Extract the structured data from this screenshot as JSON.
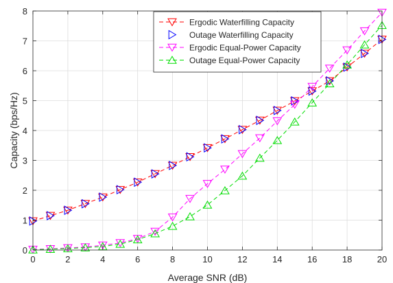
{
  "chart_data": {
    "type": "line",
    "title": "",
    "xlabel": "Average SNR (dB)",
    "ylabel": "Capacity (bps/Hz)",
    "xlim": [
      0,
      20
    ],
    "ylim": [
      0,
      8
    ],
    "xticks": [
      0,
      2,
      4,
      6,
      8,
      10,
      12,
      14,
      16,
      18,
      20
    ],
    "yticks": [
      0,
      1,
      2,
      3,
      4,
      5,
      6,
      7,
      8
    ],
    "grid": true,
    "legend_position": "top-right",
    "x": [
      0,
      1,
      2,
      3,
      4,
      5,
      6,
      7,
      8,
      9,
      10,
      11,
      12,
      13,
      14,
      15,
      16,
      17,
      18,
      19,
      20
    ],
    "series": [
      {
        "name": "Ergodic Waterfilling Capacity",
        "color": "#ff0000",
        "marker": "triangle-down",
        "linestyle": "dashed",
        "values": [
          0.97,
          1.15,
          1.33,
          1.55,
          1.77,
          2.02,
          2.27,
          2.55,
          2.83,
          3.12,
          3.42,
          3.72,
          4.03,
          4.34,
          4.67,
          4.99,
          5.32,
          5.66,
          6.12,
          6.58,
          7.05
        ]
      },
      {
        "name": "Outage Waterfilling Capacity",
        "color": "#0000ff",
        "marker": "triangle-right",
        "linestyle": "none",
        "values": [
          0.97,
          1.15,
          1.33,
          1.55,
          1.77,
          2.02,
          2.27,
          2.55,
          2.83,
          3.12,
          3.42,
          3.72,
          4.03,
          4.34,
          4.67,
          4.99,
          5.32,
          5.66,
          6.12,
          6.58,
          7.05
        ]
      },
      {
        "name": "Ergodic Equal-Power Capacity",
        "color": "#ff00ff",
        "marker": "triangle-down",
        "linestyle": "dashed",
        "values": [
          0.02,
          0.04,
          0.07,
          0.1,
          0.16,
          0.24,
          0.38,
          0.62,
          1.1,
          1.72,
          2.22,
          2.7,
          3.22,
          3.75,
          4.32,
          4.87,
          5.47,
          6.08,
          6.69,
          7.33,
          7.95
        ]
      },
      {
        "name": "Outage Equal-Power Capacity",
        "color": "#00dd00",
        "marker": "triangle-up",
        "linestyle": "dashed",
        "values": [
          0.01,
          0.03,
          0.05,
          0.08,
          0.12,
          0.2,
          0.35,
          0.55,
          0.8,
          1.12,
          1.51,
          1.99,
          2.48,
          3.08,
          3.67,
          4.29,
          4.93,
          5.57,
          6.2,
          6.87,
          7.52
        ]
      }
    ]
  }
}
